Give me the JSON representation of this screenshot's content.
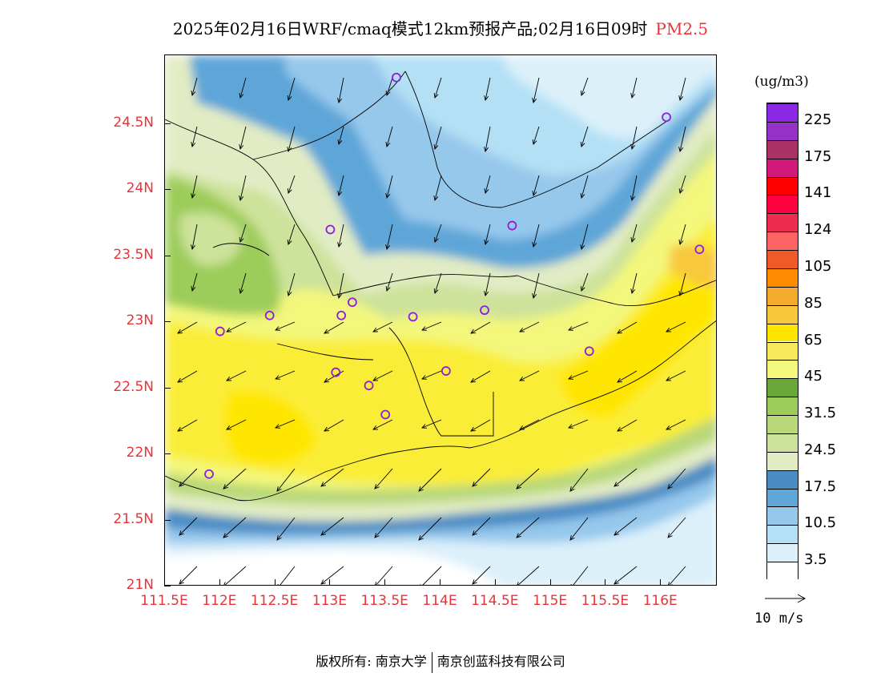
{
  "header": {
    "title": "2025年02月16日WRF/cmaq模式12km预报产品;02月16日09时",
    "variable": "PM2.5"
  },
  "map": {
    "lat_labels": [
      "24.5N",
      "24N",
      "23.5N",
      "23N",
      "22.5N",
      "22N",
      "21.5N",
      "21N"
    ],
    "lon_labels": [
      "111.5E",
      "112E",
      "112.5E",
      "113E",
      "113.5E",
      "114E",
      "114.5E",
      "115E",
      "115.5E",
      "116E"
    ],
    "lat_range": [
      21.0,
      25.0
    ],
    "lon_range": [
      111.5,
      116.5
    ],
    "station_marker": "circle-icon",
    "stations": [
      {
        "lon": 113.6,
        "lat": 24.85
      },
      {
        "lon": 116.05,
        "lat": 24.55
      },
      {
        "lon": 113.0,
        "lat": 23.7
      },
      {
        "lon": 114.65,
        "lat": 23.73
      },
      {
        "lon": 116.35,
        "lat": 23.55
      },
      {
        "lon": 112.45,
        "lat": 23.05
      },
      {
        "lon": 113.1,
        "lat": 23.05
      },
      {
        "lon": 113.2,
        "lat": 23.15
      },
      {
        "lon": 113.75,
        "lat": 23.04
      },
      {
        "lon": 114.4,
        "lat": 23.09
      },
      {
        "lon": 112.0,
        "lat": 22.93
      },
      {
        "lon": 115.35,
        "lat": 22.78
      },
      {
        "lon": 113.05,
        "lat": 22.62
      },
      {
        "lon": 114.05,
        "lat": 22.63
      },
      {
        "lon": 113.35,
        "lat": 22.52
      },
      {
        "lon": 113.5,
        "lat": 22.3
      },
      {
        "lon": 111.9,
        "lat": 21.85
      }
    ]
  },
  "legend": {
    "unit": "(ug/m3)",
    "colors": [
      "#ffffff",
      "#dcf0fa",
      "#b4e0f5",
      "#96c8ec",
      "#5ea6d8",
      "#4a8cc4",
      "#e2ecc4",
      "#cde29a",
      "#b9d878",
      "#9ccc5a",
      "#68a838",
      "#f3f77c",
      "#f7e95a",
      "#ffe600",
      "#f8c83c",
      "#f4aa2c",
      "#ff8c00",
      "#f05a28",
      "#ff6464",
      "#ee2c50",
      "#ff0040",
      "#ff0000",
      "#d21878",
      "#aa3264",
      "#9632c8",
      "#8c28e6"
    ],
    "labels": [
      "3.5",
      "10.5",
      "17.5",
      "24.5",
      "31.5",
      "45",
      "65",
      "85",
      "105",
      "124",
      "141",
      "175",
      "225"
    ]
  },
  "wind_reference": {
    "label": "10 m/s",
    "arrow_icon": "arrow-right-icon"
  },
  "footer": {
    "copyright": "版权所有: 南京大学",
    "company": "南京创蓝科技有限公司"
  }
}
